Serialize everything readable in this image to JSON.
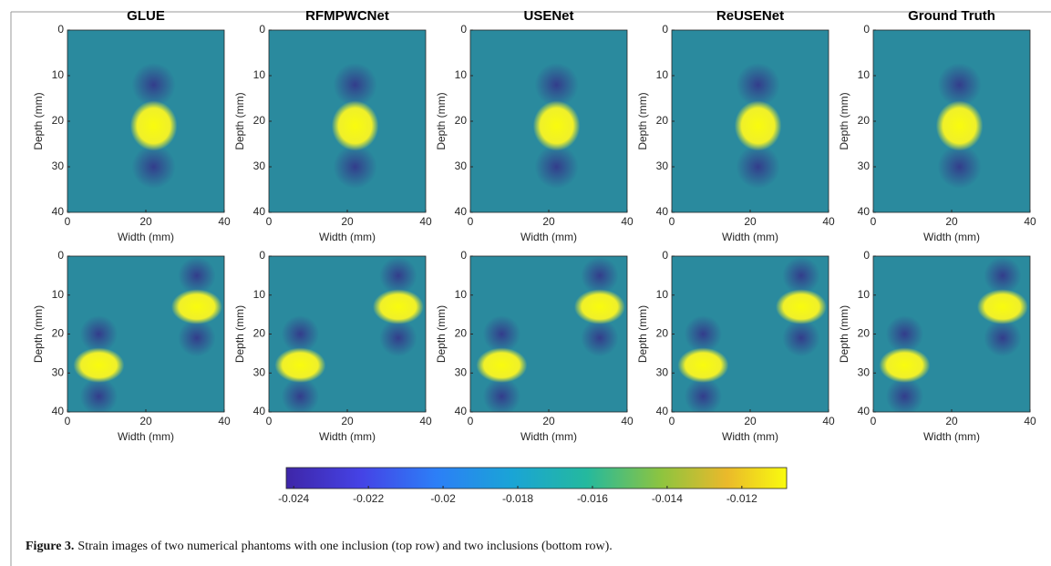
{
  "chart_data": [
    {
      "type": "heatmap",
      "title": "GLUE",
      "xlabel": "Width (mm)",
      "ylabel": "Depth (mm)",
      "xlim": [
        0,
        40
      ],
      "ylim": [
        40,
        0
      ],
      "xticks": [
        0,
        20,
        40
      ],
      "yticks": [
        0,
        10,
        20,
        30,
        40
      ]
    },
    {
      "type": "heatmap",
      "title": "RFMPWCNet",
      "xlabel": "Width (mm)",
      "ylabel": "Depth (mm)",
      "xlim": [
        0,
        40
      ],
      "ylim": [
        40,
        0
      ],
      "xticks": [
        0,
        20,
        40
      ],
      "yticks": [
        0,
        10,
        20,
        30,
        40
      ]
    },
    {
      "type": "heatmap",
      "title": "USENet",
      "xlabel": "Width (mm)",
      "ylabel": "Depth (mm)",
      "xlim": [
        0,
        40
      ],
      "ylim": [
        40,
        0
      ],
      "xticks": [
        0,
        20,
        40
      ],
      "yticks": [
        0,
        10,
        20,
        30,
        40
      ]
    },
    {
      "type": "heatmap",
      "title": "ReUSENet",
      "xlabel": "Width (mm)",
      "ylabel": "Depth (mm)",
      "xlim": [
        0,
        40
      ],
      "ylim": [
        40,
        0
      ],
      "xticks": [
        0,
        20,
        40
      ],
      "yticks": [
        0,
        10,
        20,
        30,
        40
      ]
    },
    {
      "type": "heatmap",
      "title": "Ground Truth",
      "xlabel": "Width (mm)",
      "ylabel": "Depth (mm)",
      "xlim": [
        0,
        40
      ],
      "ylim": [
        40,
        0
      ],
      "xticks": [
        0,
        20,
        40
      ],
      "yticks": [
        0,
        10,
        20,
        30,
        40
      ]
    },
    {
      "type": "heatmap",
      "xlabel": "Width (mm)",
      "ylabel": "Depth (mm)",
      "xlim": [
        0,
        40
      ],
      "ylim": [
        40,
        0
      ],
      "xticks": [
        0,
        20,
        40
      ],
      "yticks": [
        0,
        10,
        20,
        30,
        40
      ]
    },
    {
      "type": "heatmap",
      "xlabel": "Width (mm)",
      "ylabel": "Depth (mm)",
      "xlim": [
        0,
        40
      ],
      "ylim": [
        40,
        0
      ],
      "xticks": [
        0,
        20,
        40
      ],
      "yticks": [
        0,
        10,
        20,
        30,
        40
      ]
    },
    {
      "type": "heatmap",
      "xlabel": "Width (mm)",
      "ylabel": "Depth (mm)",
      "xlim": [
        0,
        40
      ],
      "ylim": [
        40,
        0
      ],
      "xticks": [
        0,
        20,
        40
      ],
      "yticks": [
        0,
        10,
        20,
        30,
        40
      ]
    },
    {
      "type": "heatmap",
      "xlabel": "Width (mm)",
      "ylabel": "Depth (mm)",
      "xlim": [
        0,
        40
      ],
      "ylim": [
        40,
        0
      ],
      "xticks": [
        0,
        20,
        40
      ],
      "yticks": [
        0,
        10,
        20,
        30,
        40
      ]
    },
    {
      "type": "heatmap",
      "xlabel": "Width (mm)",
      "ylabel": "Depth (mm)",
      "xlim": [
        0,
        40
      ],
      "ylim": [
        40,
        0
      ],
      "xticks": [
        0,
        20,
        40
      ],
      "yticks": [
        0,
        10,
        20,
        30,
        40
      ]
    }
  ],
  "colorbar": {
    "lim": [
      -0.0242,
      -0.0108
    ],
    "ticks": [
      -0.024,
      -0.022,
      -0.02,
      -0.018,
      -0.016,
      -0.014,
      -0.012
    ]
  },
  "caption": {
    "label": "Figure 3.",
    "text": "Strain images of two numerical phantoms with one inclusion (top row) and two inclusions (bottom row)."
  }
}
